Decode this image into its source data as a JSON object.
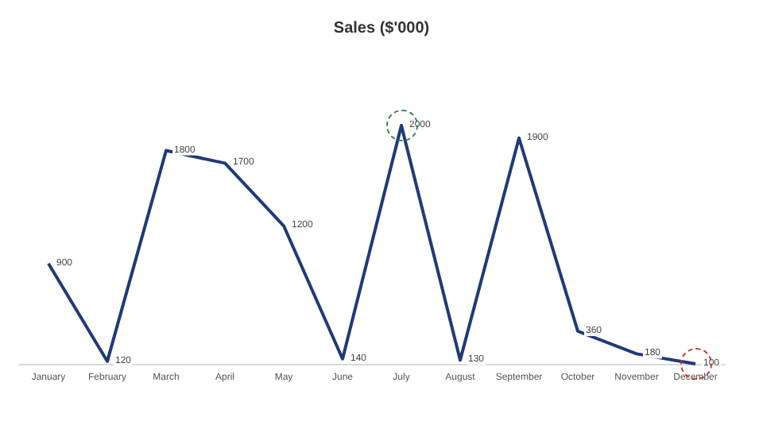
{
  "chart_data": {
    "type": "line",
    "title": "Sales ($'000)",
    "categories": [
      "January",
      "February",
      "March",
      "April",
      "May",
      "June",
      "July",
      "August",
      "September",
      "October",
      "November",
      "December"
    ],
    "series": [
      {
        "color": "#1f3a78",
        "values": [
          900,
          120,
          1800,
          1700,
          1200,
          140,
          2000,
          130,
          1900,
          360,
          180,
          100
        ]
      }
    ],
    "tick_labels": "x",
    "data_labels": true,
    "grid": false,
    "marker": "none",
    "line_style": "solid"
  }
}
